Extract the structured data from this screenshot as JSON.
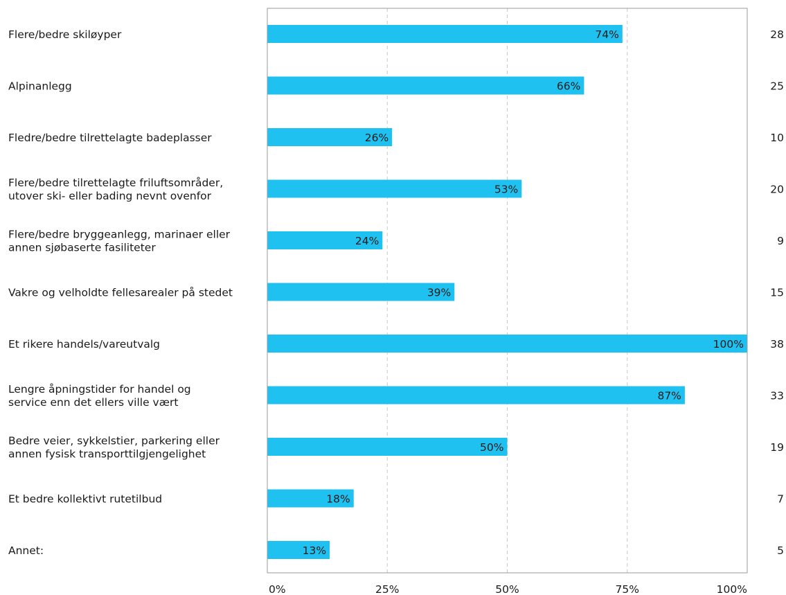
{
  "chart_data": {
    "type": "bar",
    "orientation": "horizontal",
    "categories": [
      [
        "Flere/bedre skiløyper"
      ],
      [
        "Alpinanlegg"
      ],
      [
        "Fledre/bedre tilrettelagte badeplasser"
      ],
      [
        "Flere/bedre tilrettelagte friluftsområder,",
        "utover ski- eller bading nevnt ovenfor"
      ],
      [
        "Flere/bedre bryggeanlegg, marinaer eller",
        "annen sjøbaserte fasiliteter"
      ],
      [
        "Vakre og velholdte fellesarealer på stedet"
      ],
      [
        "Et rikere handels/vareutvalg"
      ],
      [
        "Lengre åpningstider for handel og",
        "service enn det ellers ville vært"
      ],
      [
        "Bedre veier, sykkelstier, parkering eller",
        "annen fysisk transporttilgjengelighet"
      ],
      [
        "Et bedre kollektivt rutetilbud"
      ],
      [
        "Annet:"
      ]
    ],
    "values": [
      74,
      66,
      26,
      53,
      24,
      39,
      100,
      87,
      50,
      18,
      13
    ],
    "value_labels": [
      "74%",
      "66%",
      "26%",
      "53%",
      "24%",
      "39%",
      "100%",
      "87%",
      "50%",
      "18%",
      "13%"
    ],
    "counts": [
      "28",
      "25",
      "10",
      "20",
      "9",
      "15",
      "38",
      "33",
      "19",
      "7",
      "5"
    ],
    "x_ticks": [
      0,
      25,
      50,
      75,
      100
    ],
    "x_tick_labels": [
      "0%",
      "25%",
      "50%",
      "75%",
      "100%"
    ],
    "xlim": [
      0,
      100
    ],
    "grid": true,
    "title": "",
    "xlabel": "",
    "ylabel": ""
  },
  "colors": {
    "bar": "#1fc1f0",
    "grid": "#c8c8c8",
    "frame": "#9a9a9a",
    "text": "#1a1a1a"
  }
}
